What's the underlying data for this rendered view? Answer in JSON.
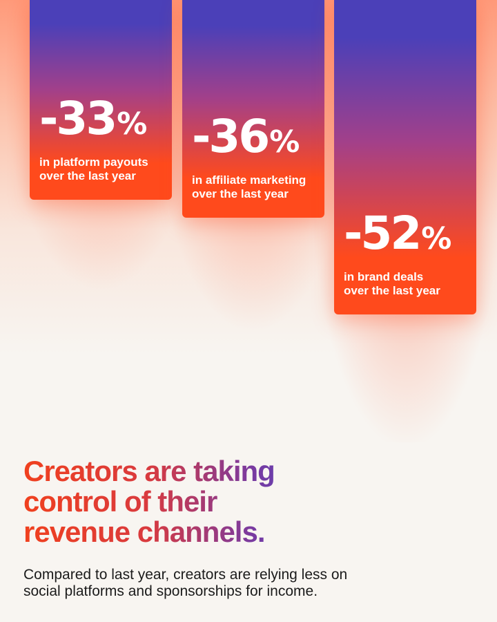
{
  "chart_data": {
    "type": "bar",
    "orientation": "vertical-hanging",
    "categories": [
      "in platform payouts\nover the last year",
      "in affiliate marketing\nover the last year",
      "in brand deals\nover the last year"
    ],
    "values": [
      -33,
      -36,
      -52
    ],
    "value_labels": [
      "-33",
      "-36",
      "-52"
    ],
    "unit": "%",
    "colors": {
      "top": "#4b40b8",
      "bottom": "#ff4a1c"
    }
  },
  "headline": "Creators are taking\ncontrol of their\nrevenue channels.",
  "subtext": "Compared to last year, creators are relying less on\nsocial platforms and sponsorships for income."
}
